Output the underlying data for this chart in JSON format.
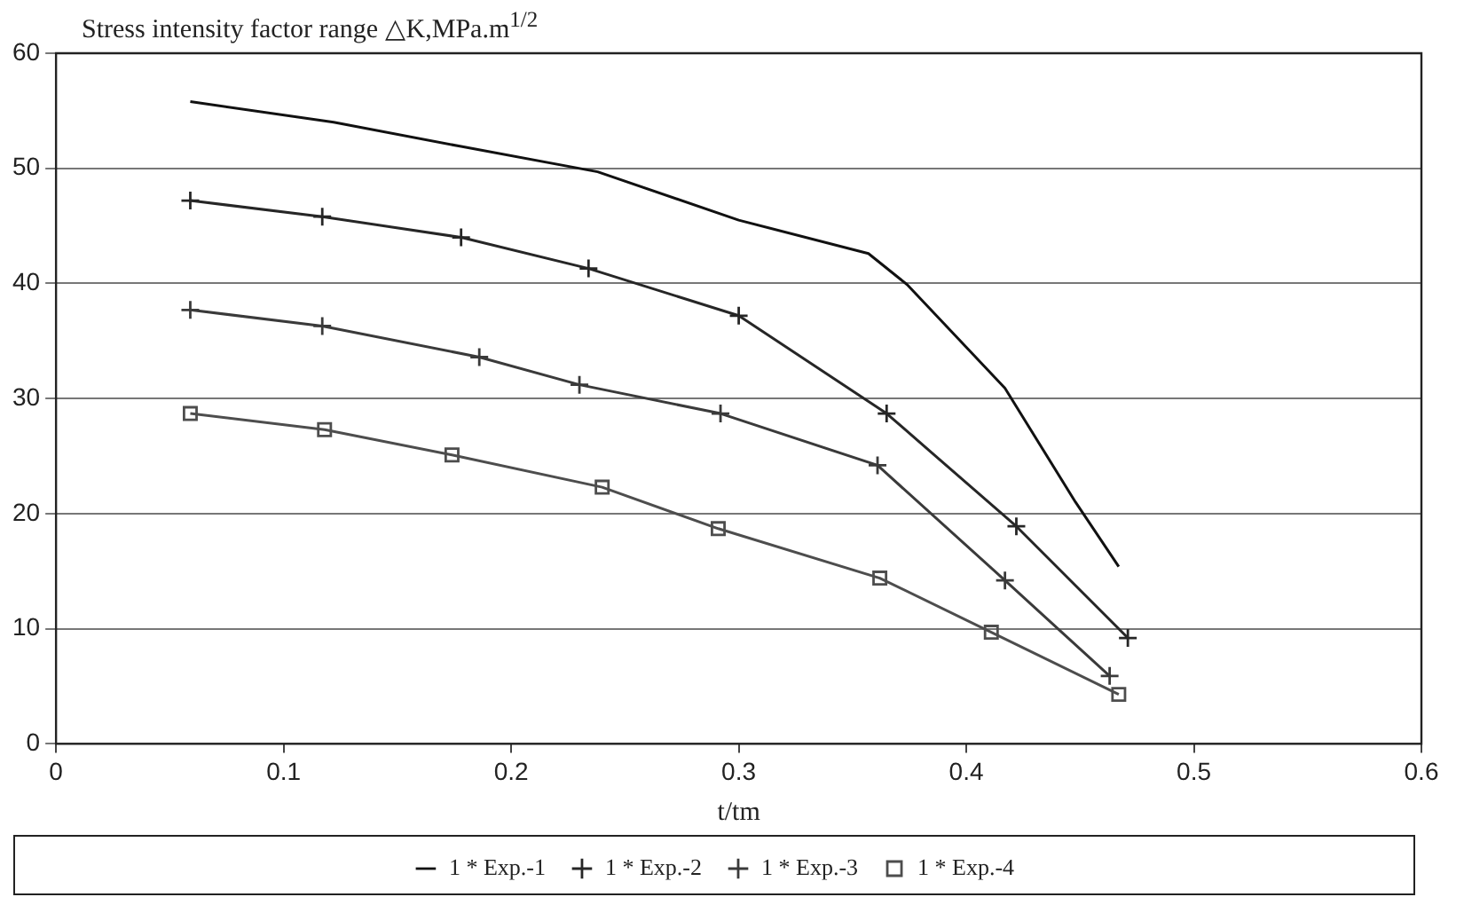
{
  "chart_data": {
    "type": "line",
    "ylabel": "Stress intensity factor range △K,MPa.m$^{1/2}$",
    "xlabel": "t/tm",
    "xlim": [
      0,
      0.6
    ],
    "xticks": [
      0,
      0.1,
      0.2,
      0.3,
      0.4,
      0.5,
      0.6
    ],
    "ylim": [
      0,
      60
    ],
    "yticks": [
      0,
      10,
      20,
      30,
      40,
      50,
      60
    ],
    "grid": "y",
    "legend": "bottom",
    "line_style": "solid",
    "series": [
      {
        "name": "1 * Exp.-1",
        "color": "#111111",
        "marker": "none",
        "x": [
          0.059,
          0.122,
          0.178,
          0.238,
          0.3,
          0.357,
          0.374,
          0.417,
          0.448,
          0.467
        ],
        "values": [
          55.8,
          54,
          51.9,
          49.7,
          45.5,
          42.6,
          39.9,
          30.9,
          21,
          15.4
        ]
      },
      {
        "name": "1 * Exp.-2",
        "color": "#262626",
        "marker": "cross",
        "x": [
          0.059,
          0.117,
          0.178,
          0.234,
          0.3,
          0.365,
          0.422,
          0.471
        ],
        "values": [
          47.2,
          45.8,
          44,
          41.3,
          37.2,
          28.7,
          18.9,
          9.2
        ]
      },
      {
        "name": "1 * Exp.-3",
        "color": "#3a3a3a",
        "marker": "cross",
        "x": [
          0.059,
          0.117,
          0.186,
          0.23,
          0.292,
          0.361,
          0.417,
          0.463
        ],
        "values": [
          37.7,
          36.3,
          33.6,
          31.2,
          28.7,
          24.2,
          14.2,
          5.9
        ]
      },
      {
        "name": "1 * Exp.-4",
        "color": "#4d4d4d",
        "marker": "square",
        "x": [
          0.059,
          0.118,
          0.174,
          0.24,
          0.291,
          0.362,
          0.411,
          0.467
        ],
        "values": [
          28.7,
          27.3,
          25.1,
          22.3,
          18.7,
          14.4,
          9.7,
          4.3
        ]
      }
    ]
  }
}
